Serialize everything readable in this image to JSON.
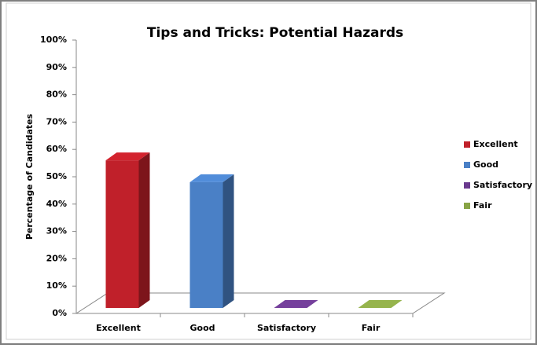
{
  "chart_data": {
    "type": "bar3d",
    "title": "Tips and Tricks: Potential Hazards",
    "y_label": "Percentage of Candidates",
    "categories": [
      "Excellent",
      "Good",
      "Satisfactory",
      "Fair"
    ],
    "values": [
      54,
      46,
      0,
      0
    ],
    "colors": [
      "#c0202a",
      "#4a80c6",
      "#6a3a8e",
      "#88a446"
    ],
    "ylim": [
      0,
      100
    ],
    "yticks": [
      {
        "value": 0,
        "label": "0%"
      },
      {
        "value": 10,
        "label": "10%"
      },
      {
        "value": 20,
        "label": "20%"
      },
      {
        "value": 30,
        "label": "30%"
      },
      {
        "value": 40,
        "label": "40%"
      },
      {
        "value": 50,
        "label": "50%"
      },
      {
        "value": 60,
        "label": "60%"
      },
      {
        "value": 70,
        "label": "70%"
      },
      {
        "value": 80,
        "label": "80%"
      },
      {
        "value": 90,
        "label": "90%"
      },
      {
        "value": 100,
        "label": "100%"
      }
    ],
    "legend": "right"
  }
}
